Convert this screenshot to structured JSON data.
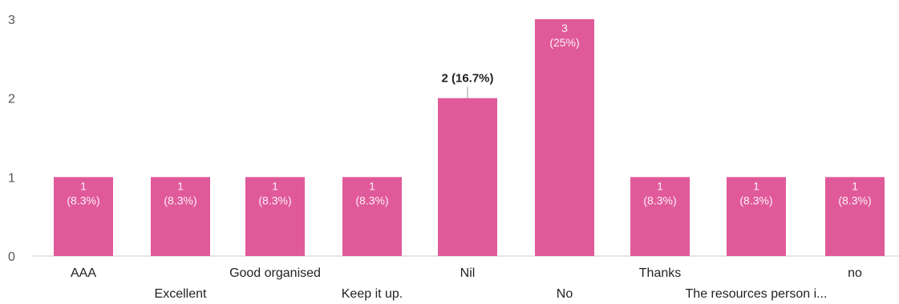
{
  "chart_data": {
    "type": "bar",
    "categories": [
      "AAA",
      "Excellent",
      "Good organised",
      "Keep it up.",
      "Nil",
      "No",
      "Thanks",
      "The resources person i...",
      "no"
    ],
    "values": [
      1,
      1,
      1,
      1,
      2,
      3,
      1,
      1,
      1
    ],
    "data_labels": [
      [
        "1",
        "(8.3%)"
      ],
      [
        "1",
        "(8.3%)"
      ],
      [
        "1",
        "(8.3%)"
      ],
      [
        "1",
        "(8.3%)"
      ],
      [
        "2 (16.7%)"
      ],
      [
        "3",
        "(25%)"
      ],
      [
        "1",
        "(8.3%)"
      ],
      [
        "1",
        "(8.3%)"
      ],
      [
        "1",
        "(8.3%)"
      ]
    ],
    "ylim": [
      0,
      3
    ],
    "yticks": [
      "0",
      "1",
      "2",
      "3"
    ],
    "grid": false,
    "colors": {
      "bar": "#e05a9a",
      "axis": "#cccccc",
      "text": "#222222",
      "tick": "#555555"
    }
  }
}
